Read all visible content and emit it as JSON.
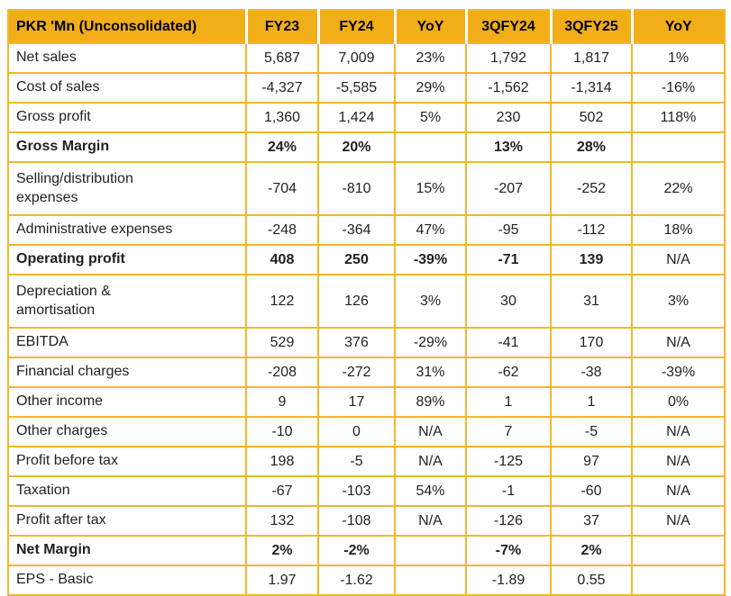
{
  "chart_data": {
    "type": "table",
    "title": "PKR 'Mn (Unconsolidated)",
    "columns": [
      "PKR 'Mn (Unconsolidated)",
      "FY23",
      "FY24",
      "YoY",
      "3QFY24",
      "3QFY25",
      "YoY"
    ],
    "rows": [
      {
        "label": "Net sales",
        "values": [
          "5,687",
          "7,009",
          "23%",
          "1,792",
          "1,817",
          "1%"
        ],
        "bold": false
      },
      {
        "label": "Cost of sales",
        "values": [
          "-4,327",
          "-5,585",
          "29%",
          "-1,562",
          "-1,314",
          "-16%"
        ],
        "bold": false
      },
      {
        "label": "Gross profit",
        "values": [
          "1,360",
          "1,424",
          "5%",
          "230",
          "502",
          "118%"
        ],
        "bold": false
      },
      {
        "label": "Gross Margin",
        "values": [
          "24%",
          "20%",
          "",
          "13%",
          "28%",
          ""
        ],
        "bold": true
      },
      {
        "label": "Selling/distribution expenses",
        "values": [
          "-704",
          "-810",
          "15%",
          "-207",
          "-252",
          "22%"
        ],
        "bold": false
      },
      {
        "label": "Administrative expenses",
        "values": [
          "-248",
          "-364",
          "47%",
          "-95",
          "-112",
          "18%"
        ],
        "bold": false
      },
      {
        "label": "Operating profit",
        "values": [
          "408",
          "250",
          "-39%",
          "-71",
          "139",
          "N/A"
        ],
        "bold": true
      },
      {
        "label": "Depreciation & amortisation",
        "values": [
          "122",
          "126",
          "3%",
          "30",
          "31",
          "3%"
        ],
        "bold": false
      },
      {
        "label": "EBITDA",
        "values": [
          "529",
          "376",
          "-29%",
          "-41",
          "170",
          "N/A"
        ],
        "bold": false
      },
      {
        "label": "Financial charges",
        "values": [
          "-208",
          "-272",
          "31%",
          "-62",
          "-38",
          "-39%"
        ],
        "bold": false
      },
      {
        "label": "Other income",
        "values": [
          "9",
          "17",
          "89%",
          "1",
          "1",
          "0%"
        ],
        "bold": false
      },
      {
        "label": "Other charges",
        "values": [
          "-10",
          "0",
          "N/A",
          "7",
          "-5",
          "N/A"
        ],
        "bold": false
      },
      {
        "label": "Profit before tax",
        "values": [
          "198",
          "-5",
          "N/A",
          "-125",
          "97",
          "N/A"
        ],
        "bold": false
      },
      {
        "label": "Taxation",
        "values": [
          "-67",
          "-103",
          "54%",
          "-1",
          "-60",
          "N/A"
        ],
        "bold": false
      },
      {
        "label": "Profit after tax",
        "values": [
          "132",
          "-108",
          "N/A",
          "-126",
          "37",
          "N/A"
        ],
        "bold": false
      },
      {
        "label": "Net Margin",
        "values": [
          "2%",
          "-2%",
          "",
          "-7%",
          "2%",
          ""
        ],
        "bold": true
      },
      {
        "label": "EPS - Basic",
        "values": [
          "1.97",
          "-1.62",
          "",
          "-1.89",
          "0.55",
          ""
        ],
        "bold": false
      }
    ],
    "legend": "none",
    "grid": "on"
  },
  "colors": {
    "header_fill": "#F1AE18",
    "grid_border": "#F4B72B",
    "header_separator": "#FFFFFF",
    "text": "#231F20",
    "header_text": "#000000"
  }
}
